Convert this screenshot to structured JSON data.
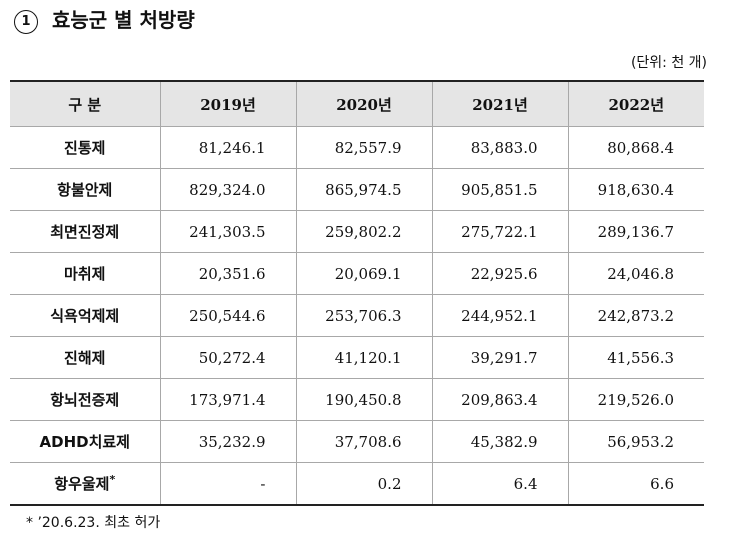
{
  "title": {
    "number": "1",
    "text": "효능군 별 처방량"
  },
  "unit": "(단위: 천 개)",
  "table": {
    "header": [
      "구  분",
      "2019년",
      "2020년",
      "2021년",
      "2022년"
    ],
    "rows": [
      {
        "category": "진통제",
        "values": [
          "81,246.1",
          "82,557.9",
          "83,883.0",
          "80,868.4"
        ]
      },
      {
        "category": "항불안제",
        "values": [
          "829,324.0",
          "865,974.5",
          "905,851.5",
          "918,630.4"
        ]
      },
      {
        "category": "최면진정제",
        "values": [
          "241,303.5",
          "259,802.2",
          "275,722.1",
          "289,136.7"
        ]
      },
      {
        "category": "마취제",
        "values": [
          "20,351.6",
          "20,069.1",
          "22,925.6",
          "24,046.8"
        ]
      },
      {
        "category": "식욕억제제",
        "values": [
          "250,544.6",
          "253,706.3",
          "244,952.1",
          "242,873.2"
        ]
      },
      {
        "category": "진해제",
        "values": [
          "50,272.4",
          "41,120.1",
          "39,291.7",
          "41,556.3"
        ]
      },
      {
        "category": "항뇌전증제",
        "values": [
          "173,971.4",
          "190,450.8",
          "209,863.4",
          "219,526.0"
        ]
      },
      {
        "category": "ADHD치료제",
        "values": [
          "35,232.9",
          "37,708.6",
          "45,382.9",
          "56,953.2"
        ]
      },
      {
        "category": "항우울제",
        "footnote_mark": "*",
        "values": [
          "-",
          "0.2",
          "6.4",
          "6.6"
        ]
      }
    ]
  },
  "footnote": "* ’20.6.23. 최초 허가"
}
